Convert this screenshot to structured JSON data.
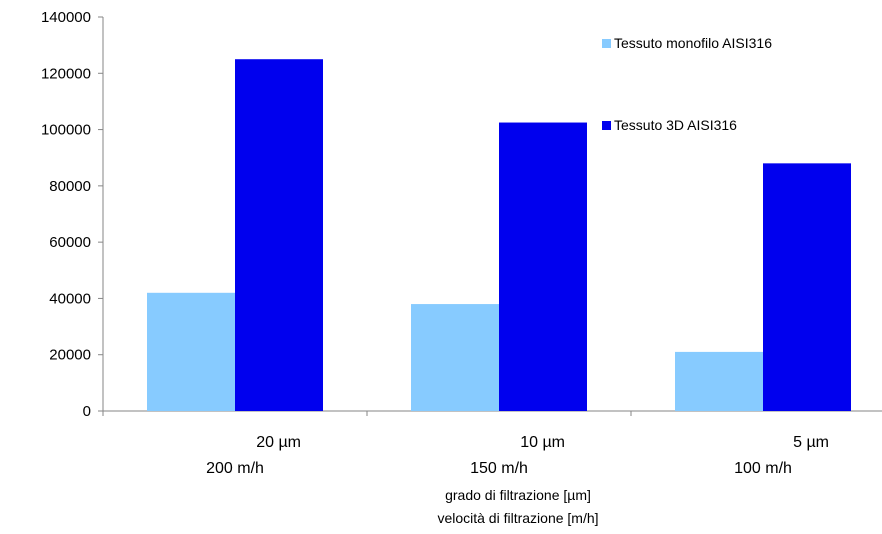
{
  "chart_data": {
    "type": "bar",
    "categories": [
      "20 µm",
      "10 µm",
      "5 µm"
    ],
    "categories_line2": [
      "200 m/h",
      "150 m/h",
      "100 m/h"
    ],
    "series": [
      {
        "name": "Tessuto monofilo AISI316",
        "values": [
          42000,
          38000,
          21000
        ],
        "color": "#87CBFF"
      },
      {
        "name": "Tessuto 3D AISI316",
        "values": [
          125000,
          102500,
          88000
        ],
        "color": "#0000EE"
      }
    ],
    "xlabel": [
      "grado di filtrazione [µm]",
      "velocità di filtrazione [m/h]"
    ],
    "ylabel": "",
    "ylim": [
      0,
      140000
    ],
    "yticks": [
      0,
      20000,
      40000,
      60000,
      80000,
      100000,
      120000,
      140000
    ],
    "grid": false,
    "legend_position": "top-right"
  }
}
